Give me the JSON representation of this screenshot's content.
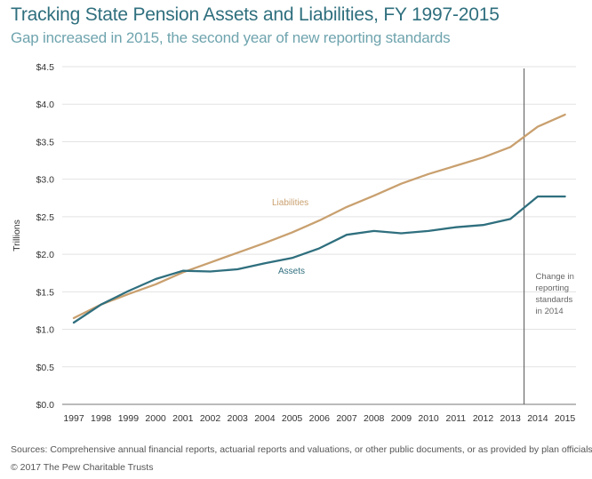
{
  "chart_data": {
    "type": "line",
    "title": "Tracking State Pension Assets and Liabilities, FY 1997-2015",
    "subtitle": "Gap increased in 2015, the second year of new reporting standards",
    "ylabel": "Trillions",
    "xlabel": "",
    "ylim": [
      0,
      4.5
    ],
    "yticks": [
      0,
      0.5,
      1.0,
      1.5,
      2.0,
      2.5,
      3.0,
      3.5,
      4.0,
      4.5
    ],
    "ytick_labels": [
      "$0.0",
      "$0.5",
      "$1.0",
      "$1.5",
      "$2.0",
      "$2.5",
      "$3.0",
      "$3.5",
      "$4.0",
      "$4.5"
    ],
    "grid": true,
    "x": [
      "1997",
      "1998",
      "1999",
      "2000",
      "2001",
      "2002",
      "2003",
      "2004",
      "2005",
      "2006",
      "2007",
      "2008",
      "2009",
      "2010",
      "2011",
      "2012",
      "2013",
      "2014",
      "2015"
    ],
    "series": [
      {
        "name": "Liabilities",
        "color": "#c9a06f",
        "values": [
          1.15,
          1.33,
          1.47,
          1.6,
          1.76,
          1.89,
          2.02,
          2.15,
          2.29,
          2.45,
          2.63,
          2.78,
          2.94,
          3.07,
          3.18,
          3.29,
          3.43,
          3.7,
          3.86
        ]
      },
      {
        "name": "Assets",
        "color": "#2f6f7e",
        "values": [
          1.09,
          1.33,
          1.51,
          1.67,
          1.78,
          1.77,
          1.8,
          1.88,
          1.95,
          2.08,
          2.26,
          2.31,
          2.28,
          2.31,
          2.36,
          2.39,
          2.47,
          2.77,
          2.77
        ]
      }
    ],
    "annotations": [
      {
        "x": "2013.5",
        "type": "vline",
        "lines": [
          "Change in",
          "reporting",
          "standards",
          "in 2014"
        ]
      }
    ]
  },
  "footer": {
    "source": "Sources: Comprehensive annual financial reports, actuarial reports and valuations, or other public documents, or as provided by plan officials",
    "copyright": "© 2017 The Pew Charitable Trusts"
  }
}
